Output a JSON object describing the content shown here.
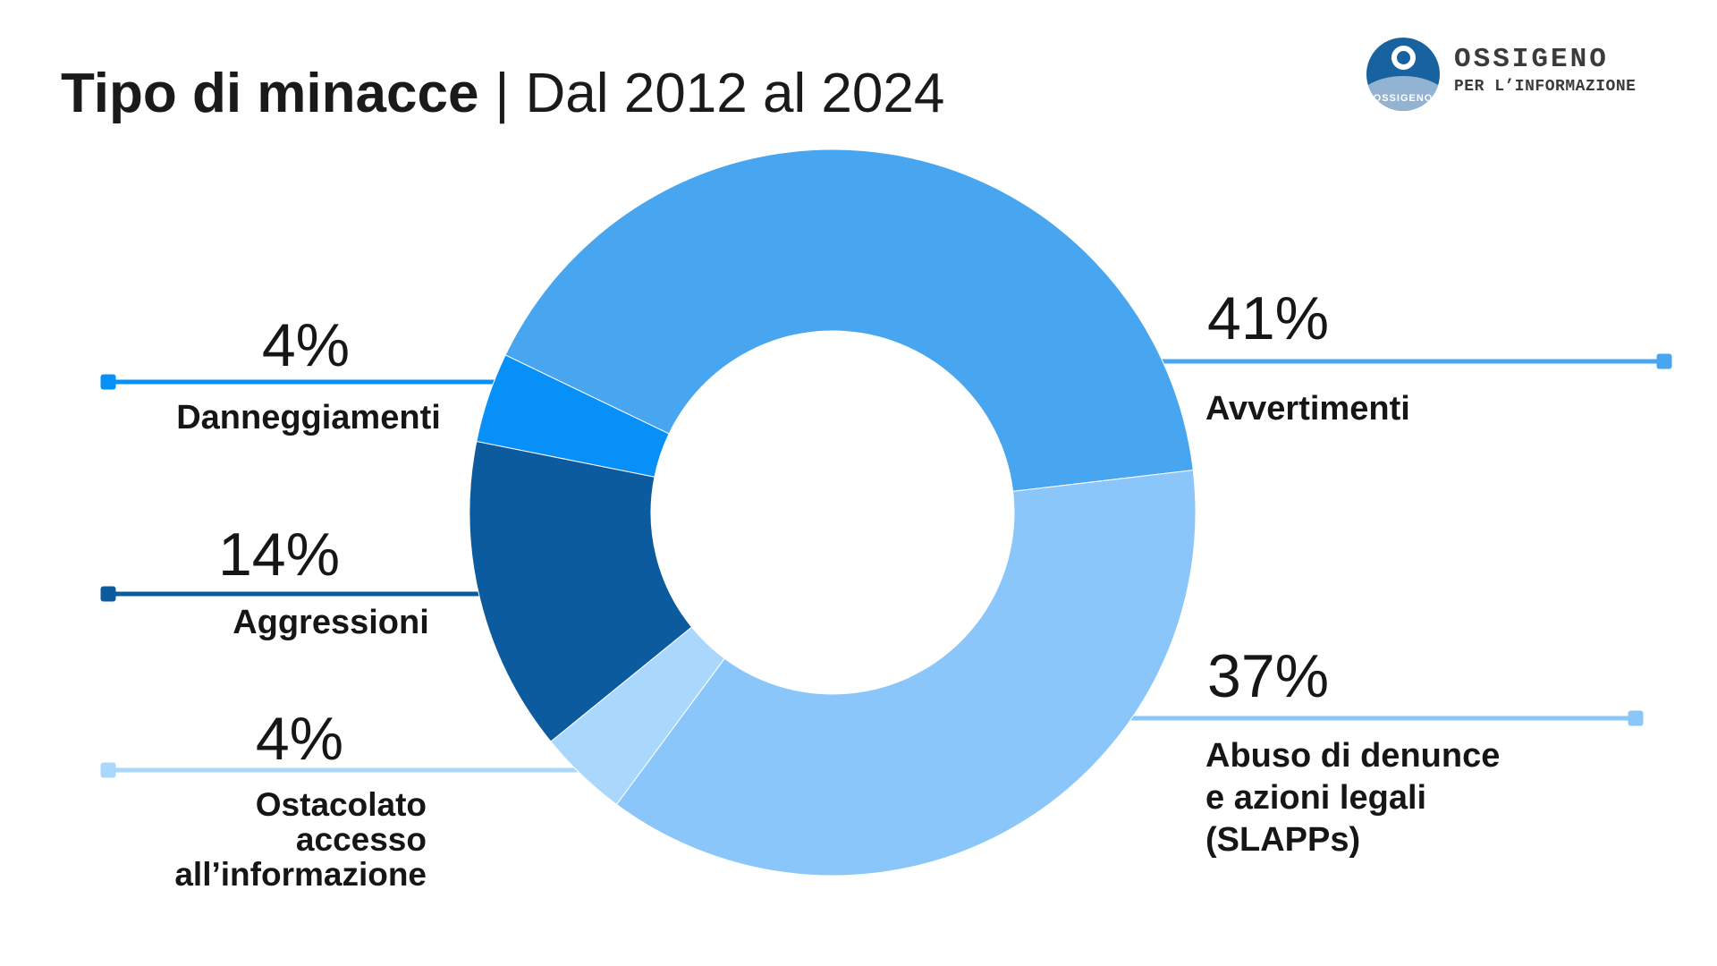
{
  "header": {
    "title_bold": "Tipo di minacce",
    "separator": "|",
    "subtitle": "Dal 2012 al 2024"
  },
  "logo": {
    "circle_label": "OSSIGENO",
    "wordmark_line1": "OSSIGENO",
    "wordmark_line2": "PER L’INFORMAZIONE"
  },
  "chart_data": {
    "type": "pie",
    "variant": "donut",
    "title": "Tipo di minacce",
    "period": "Dal 2012 al 2024",
    "unit": "%",
    "legend_position": "callout-labels",
    "slices": [
      {
        "label": "Avvertimenti",
        "value": 41,
        "pct_label": "41%",
        "color": "#47a6ef"
      },
      {
        "label": "Abuso di denunce e azioni legali (SLAPPs)",
        "value": 37,
        "pct_label": "37%",
        "color": "#8ac6fa",
        "label_lines": [
          "Abuso di denunce",
          "e azioni legali",
          "(SLAPPs)"
        ]
      },
      {
        "label": "Ostacolato accesso all’informazione",
        "value": 4,
        "pct_label": "4%",
        "color": "#aad7fc",
        "label_lines": [
          "Ostacolato",
          "accesso",
          "all’informazione"
        ]
      },
      {
        "label": "Aggressioni",
        "value": 14,
        "pct_label": "14%",
        "color": "#0d5b9f"
      },
      {
        "label": "Danneggiamenti",
        "value": 4,
        "pct_label": "4%",
        "color": "#0791f8"
      }
    ]
  }
}
